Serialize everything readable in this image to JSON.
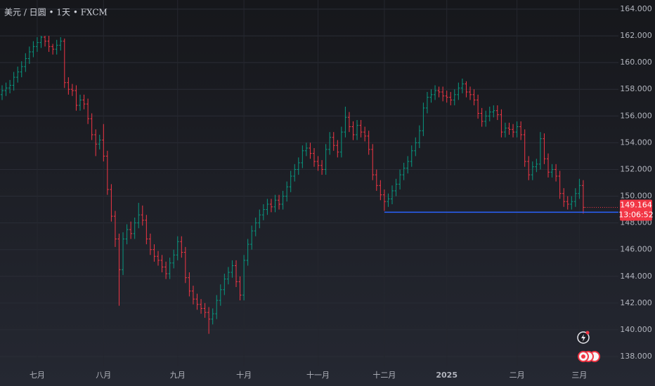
{
  "chart_data": {
    "type": "ohlc",
    "title": "美元 / 日圆 • 1天 • FXCM",
    "up_color": "#089981",
    "down_color": "#f23645",
    "grid": true,
    "ylim": [
      138,
      164
    ],
    "yticks": [
      {
        "value": 138,
        "label": "138.000"
      },
      {
        "value": 140,
        "label": "140.000"
      },
      {
        "value": 142,
        "label": "142.000"
      },
      {
        "value": 144,
        "label": "144.000"
      },
      {
        "value": 146,
        "label": "146.000"
      },
      {
        "value": 148,
        "label": "148.000"
      },
      {
        "value": 150,
        "label": "150.000"
      },
      {
        "value": 152,
        "label": "152.000"
      },
      {
        "value": 154,
        "label": "154.000"
      },
      {
        "value": 156,
        "label": "156.000"
      },
      {
        "value": 158,
        "label": "158.000"
      },
      {
        "value": 160,
        "label": "160.000"
      },
      {
        "value": 162,
        "label": "162.000"
      },
      {
        "value": 164,
        "label": "164.000"
      }
    ],
    "xticks": [
      {
        "value": 9,
        "label": "七月"
      },
      {
        "value": 26,
        "label": "八月"
      },
      {
        "value": 45,
        "label": "九月"
      },
      {
        "value": 62,
        "label": "十月"
      },
      {
        "value": 81,
        "label": "十一月"
      },
      {
        "value": 98,
        "label": "十二月"
      },
      {
        "value": 114,
        "label": "2025"
      },
      {
        "value": 132,
        "label": "二月"
      },
      {
        "value": 148,
        "label": "三月"
      }
    ],
    "hline": {
      "value": 148.8,
      "start": 98,
      "color": "#2962ff"
    },
    "last_price": {
      "value": 149.164,
      "countdown": "13:06:52",
      "color": "#f23645"
    },
    "open": [
      157.6,
      157.9,
      158.1,
      158.3,
      158.9,
      159.3,
      159.7,
      160.3,
      160.8,
      161.2,
      161.5,
      161.9,
      161.6,
      161.2,
      161.0,
      161.3,
      161.6,
      158.5,
      158.0,
      157.9,
      156.8,
      157.2,
      156.9,
      155.8,
      154.6,
      153.9,
      154.2,
      153.0,
      150.5,
      148.5,
      146.8,
      144.5,
      146.8,
      147.5,
      147.2,
      148.0,
      148.6,
      148.2,
      146.8,
      146.0,
      145.5,
      145.2,
      144.7,
      144.2,
      145.0,
      145.6,
      146.6,
      145.8,
      143.9,
      142.9,
      142.3,
      141.9,
      141.6,
      141.3,
      140.8,
      141.2,
      142.2,
      143.0,
      143.8,
      144.3,
      144.8,
      143.6,
      142.6,
      145.2,
      146.4,
      147.4,
      148.0,
      148.6,
      149.0,
      149.4,
      149.2,
      149.7,
      149.4,
      150.0,
      150.7,
      151.5,
      152.0,
      152.5,
      153.4,
      153.6,
      153.2,
      152.6,
      152.3,
      152.0,
      153.5,
      154.4,
      153.8,
      153.3,
      154.8,
      155.9,
      155.2,
      154.6,
      155.3,
      154.8,
      154.5,
      153.5,
      151.6,
      150.8,
      150.1,
      149.6,
      149.8,
      150.4,
      150.9,
      151.6,
      152.1,
      152.6,
      153.4,
      154.0,
      154.9,
      156.6,
      157.4,
      157.6,
      157.9,
      157.8,
      157.5,
      157.4,
      157.2,
      157.6,
      158.1,
      158.4,
      157.8,
      157.6,
      157.2,
      156.2,
      155.6,
      156.0,
      156.3,
      156.4,
      156.1,
      154.8,
      155.1,
      155.0,
      154.8,
      155.2,
      154.6,
      152.6,
      151.6,
      152.2,
      152.4,
      154.3,
      152.8,
      151.8,
      152.0,
      151.5,
      150.2,
      149.6,
      149.4,
      149.6,
      150.2,
      150.8
    ],
    "high": [
      158.3,
      158.5,
      158.7,
      159.3,
      159.7,
      160.1,
      160.7,
      161.2,
      161.6,
      161.9,
      162.0,
      162.0,
      162.0,
      161.4,
      161.7,
      161.9,
      161.8,
      158.9,
      158.4,
      158.3,
      157.6,
      157.6,
      157.3,
      156.2,
      155.0,
      154.6,
      155.4,
      153.4,
      150.9,
      148.9,
      147.2,
      147.3,
      147.9,
      148.1,
      148.4,
      149.5,
      149.3,
      148.6,
      147.2,
      146.4,
      145.9,
      145.6,
      145.1,
      145.4,
      146.0,
      147.0,
      147.0,
      146.2,
      144.3,
      143.3,
      142.7,
      142.3,
      142.0,
      141.7,
      141.6,
      142.6,
      143.4,
      144.2,
      144.7,
      145.2,
      145.2,
      144.0,
      145.6,
      146.8,
      147.8,
      148.4,
      149.0,
      149.4,
      149.8,
      149.8,
      150.1,
      150.1,
      150.4,
      151.1,
      151.9,
      152.4,
      152.9,
      153.8,
      154.0,
      154.0,
      153.6,
      153.0,
      152.7,
      153.9,
      154.8,
      154.8,
      154.2,
      155.2,
      156.7,
      156.3,
      155.6,
      155.7,
      155.7,
      155.2,
      154.9,
      153.9,
      152.0,
      151.2,
      150.5,
      150.2,
      150.8,
      151.3,
      152.0,
      152.5,
      153.0,
      153.8,
      154.4,
      155.3,
      157.0,
      157.8,
      158.0,
      158.3,
      158.2,
      158.2,
      157.9,
      157.8,
      158.0,
      158.5,
      158.8,
      158.6,
      158.2,
      158.0,
      157.6,
      156.6,
      156.4,
      156.7,
      156.8,
      156.8,
      156.5,
      155.5,
      155.5,
      155.4,
      155.6,
      155.6,
      155.0,
      153.0,
      152.6,
      152.8,
      154.8,
      154.7,
      153.2,
      152.4,
      152.4,
      151.9,
      150.6,
      150.0,
      150.0,
      150.6,
      151.3,
      151.2
    ],
    "low": [
      157.2,
      157.5,
      157.7,
      157.9,
      158.5,
      158.9,
      159.3,
      159.9,
      160.4,
      160.8,
      161.1,
      161.2,
      160.8,
      160.6,
      160.6,
      160.9,
      158.1,
      157.6,
      157.5,
      156.4,
      156.4,
      156.5,
      155.4,
      154.2,
      153.0,
      153.5,
      152.6,
      150.1,
      148.1,
      146.2,
      141.8,
      144.1,
      146.4,
      146.8,
      146.8,
      147.6,
      147.8,
      146.4,
      145.6,
      145.1,
      144.8,
      144.3,
      143.8,
      143.8,
      144.6,
      145.2,
      145.4,
      143.5,
      142.5,
      141.9,
      141.5,
      141.2,
      140.9,
      139.7,
      140.4,
      140.8,
      141.8,
      142.6,
      143.4,
      143.9,
      143.2,
      142.2,
      142.2,
      144.8,
      146.0,
      147.0,
      147.6,
      148.2,
      148.6,
      148.8,
      148.8,
      149.0,
      149.0,
      149.6,
      150.3,
      151.1,
      151.6,
      152.1,
      153.0,
      152.8,
      152.2,
      151.9,
      151.6,
      151.6,
      153.1,
      153.4,
      152.9,
      152.9,
      154.4,
      154.8,
      154.2,
      154.2,
      154.4,
      154.1,
      153.1,
      151.2,
      150.4,
      149.7,
      148.9,
      149.2,
      149.4,
      150.0,
      150.5,
      151.2,
      151.7,
      152.2,
      153.0,
      153.6,
      154.5,
      156.2,
      157.0,
      157.2,
      157.4,
      157.1,
      157.0,
      156.8,
      156.8,
      157.2,
      157.7,
      157.4,
      157.2,
      156.8,
      155.8,
      155.2,
      155.2,
      155.6,
      155.9,
      155.7,
      154.4,
      154.4,
      154.6,
      154.4,
      154.4,
      154.2,
      152.2,
      151.2,
      151.2,
      151.8,
      152.0,
      152.4,
      151.4,
      151.4,
      151.1,
      149.8,
      149.2,
      149.0,
      149.0,
      149.2,
      149.8,
      148.7
    ],
    "close": [
      157.9,
      158.1,
      158.3,
      158.9,
      159.3,
      159.7,
      160.3,
      160.8,
      161.2,
      161.5,
      161.9,
      161.6,
      161.2,
      161.0,
      161.3,
      161.6,
      158.5,
      158.0,
      157.9,
      156.8,
      157.2,
      156.9,
      155.8,
      154.6,
      153.9,
      154.2,
      153.0,
      150.5,
      148.5,
      146.8,
      144.5,
      146.8,
      147.5,
      147.2,
      148.0,
      148.6,
      148.2,
      146.8,
      146.0,
      145.5,
      145.2,
      144.7,
      144.2,
      145.0,
      145.6,
      146.6,
      145.8,
      143.9,
      142.9,
      142.3,
      141.9,
      141.6,
      141.3,
      140.8,
      141.2,
      142.2,
      143.0,
      143.8,
      144.3,
      144.8,
      143.6,
      142.6,
      145.2,
      146.4,
      147.4,
      148.0,
      148.6,
      149.0,
      149.4,
      149.2,
      149.7,
      149.4,
      150.0,
      150.7,
      151.5,
      152.0,
      152.5,
      153.4,
      153.6,
      153.2,
      152.6,
      152.3,
      152.0,
      153.5,
      154.4,
      153.8,
      153.3,
      154.8,
      155.9,
      155.2,
      154.6,
      155.3,
      154.8,
      154.5,
      153.5,
      151.6,
      150.8,
      150.1,
      149.6,
      149.8,
      150.4,
      150.9,
      151.6,
      152.1,
      152.6,
      153.4,
      154.0,
      154.9,
      156.6,
      157.4,
      157.6,
      157.9,
      157.8,
      157.5,
      157.4,
      157.2,
      157.6,
      158.1,
      158.4,
      157.8,
      157.6,
      157.2,
      156.2,
      155.6,
      156.0,
      156.3,
      156.4,
      156.1,
      154.8,
      155.1,
      155.0,
      154.8,
      155.2,
      154.6,
      152.6,
      151.6,
      152.2,
      152.4,
      154.3,
      152.8,
      151.8,
      152.0,
      151.5,
      150.2,
      149.6,
      149.4,
      149.6,
      150.2,
      150.8,
      149.164
    ]
  }
}
